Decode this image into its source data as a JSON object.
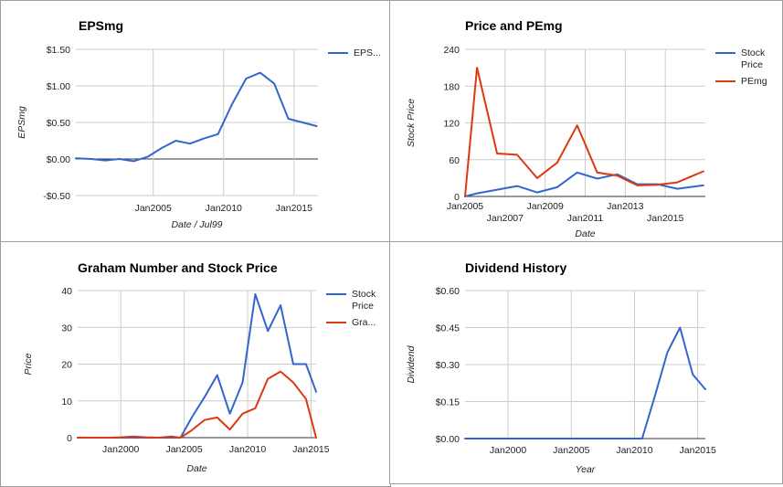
{
  "chart_data": [
    {
      "id": "eps",
      "type": "line",
      "title": "EPSmg",
      "xlabel": "Date / Jul99",
      "ylabel": "EPSmg",
      "xlim": [
        1999.5,
        2016.7
      ],
      "ylim": [
        -0.5,
        1.5
      ],
      "y_ticks": [
        -0.5,
        0,
        0.5,
        1.0,
        1.5
      ],
      "y_tick_labels": [
        "-$0.50",
        "$0.00",
        "$0.50",
        "$1.00",
        "$1.50"
      ],
      "x_ticks": [
        2005,
        2010,
        2015
      ],
      "x_tick_labels": [
        "Jan2005",
        "Jan2010",
        "Jan2015"
      ],
      "x_gridlines": [
        2005,
        2010,
        2015
      ],
      "zero_line": true,
      "legend": "right",
      "series": [
        {
          "name": "EPS...",
          "color": "#3366cc",
          "x": [
            1999.5,
            2000.6,
            2001.6,
            2002.6,
            2003.6,
            2004.6,
            2005.6,
            2006.6,
            2007.6,
            2008.6,
            2009.6,
            2010.6,
            2011.6,
            2012.6,
            2013.6,
            2014.6,
            2015.6,
            2016.6
          ],
          "y": [
            0.01,
            0.0,
            -0.02,
            0.0,
            -0.03,
            0.03,
            0.15,
            0.25,
            0.21,
            0.28,
            0.34,
            0.75,
            1.1,
            1.18,
            1.03,
            0.55,
            0.5,
            0.45
          ]
        }
      ]
    },
    {
      "id": "price_pe",
      "type": "line",
      "title": "Price and PEmg",
      "xlabel": "Date",
      "ylabel": "Stock Price",
      "xlim": [
        2005,
        2017
      ],
      "ylim": [
        0,
        240
      ],
      "y_ticks": [
        0,
        60,
        120,
        180,
        240
      ],
      "y_tick_labels": [
        "0",
        "60",
        "120",
        "180",
        "240"
      ],
      "x_ticks": [
        2005,
        2007,
        2009,
        2011,
        2013,
        2015
      ],
      "x_tick_labels": [
        "Jan2005",
        "Jan2007",
        "Jan2009",
        "Jan2011",
        "Jan2013",
        "Jan2015"
      ],
      "x_gridlines": [
        2007,
        2009,
        2011,
        2013,
        2015
      ],
      "legend": "right",
      "series": [
        {
          "name": "Stock Price",
          "color": "#3366cc",
          "x": [
            2005,
            2005.6,
            2006.6,
            2007.6,
            2008.6,
            2009.6,
            2010.6,
            2011.6,
            2012.6,
            2013.6,
            2014.6,
            2015.6,
            2016.9
          ],
          "y": [
            0,
            5,
            11,
            17,
            6.5,
            15,
            39,
            29,
            36,
            20,
            20,
            12.5,
            18
          ]
        },
        {
          "name": "PEmg",
          "color": "#dc3912",
          "x": [
            2005,
            2005.6,
            2006.6,
            2007.6,
            2008.6,
            2009.6,
            2010.6,
            2011.6,
            2012.6,
            2013.6,
            2014.6,
            2015.6,
            2016.9
          ],
          "y": [
            0,
            210,
            70,
            68,
            30,
            55,
            116,
            39,
            34,
            18,
            19,
            23,
            41
          ]
        }
      ]
    },
    {
      "id": "graham",
      "type": "line",
      "title": "Graham Number and Stock Price",
      "xlabel": "Date",
      "ylabel": "Price",
      "xlim": [
        1996.6,
        2015.4
      ],
      "ylim": [
        0,
        40
      ],
      "y_ticks": [
        0,
        10,
        20,
        30,
        40
      ],
      "y_tick_labels": [
        "0",
        "10",
        "20",
        "30",
        "40"
      ],
      "x_ticks": [
        2000,
        2005,
        2010,
        2015
      ],
      "x_tick_labels": [
        "Jan2000",
        "Jan2005",
        "Jan2010",
        "Jan2015"
      ],
      "x_gridlines": [
        2000,
        2005,
        2010,
        2015
      ],
      "legend": "right",
      "series": [
        {
          "name": "Stock Price",
          "color": "#3366cc",
          "x": [
            1996.6,
            1998,
            1999,
            2000,
            2001,
            2002,
            2003,
            2004,
            2004.7,
            2005.6,
            2006.6,
            2007.6,
            2008.6,
            2009.6,
            2010.6,
            2011.6,
            2012.6,
            2013.6,
            2014.6,
            2015.4
          ],
          "y": [
            0,
            0,
            0,
            0,
            0,
            0,
            0,
            0,
            0,
            5.5,
            11,
            17,
            6.5,
            15,
            39,
            29,
            36,
            20,
            20,
            12.5
          ]
        },
        {
          "name": "Gra...",
          "color": "#dc3912",
          "x": [
            1996.6,
            1998,
            1999,
            2000,
            2001,
            2002,
            2003,
            2004,
            2004.7,
            2005.6,
            2006.6,
            2007.6,
            2008.6,
            2009.6,
            2010.6,
            2011.6,
            2012.6,
            2013.6,
            2014.6,
            2015.4
          ],
          "y": [
            0,
            0,
            0,
            0.1,
            0.3,
            0.1,
            0,
            0.3,
            0,
            2,
            4.8,
            5.5,
            2.2,
            6.5,
            8,
            16,
            18,
            15,
            10.5,
            0
          ]
        }
      ]
    },
    {
      "id": "dividend",
      "type": "line",
      "title": "Dividend History",
      "xlabel": "Year",
      "ylabel": "Dividend",
      "xlim": [
        1996.6,
        2015.6
      ],
      "ylim": [
        0,
        0.6
      ],
      "y_ticks": [
        0,
        0.15,
        0.3,
        0.45,
        0.6
      ],
      "y_tick_labels": [
        "$0.00",
        "$0.15",
        "$0.30",
        "$0.45",
        "$0.60"
      ],
      "x_ticks": [
        2000,
        2005,
        2010,
        2015
      ],
      "x_tick_labels": [
        "Jan2000",
        "Jan2005",
        "Jan2010",
        "Jan2015"
      ],
      "x_gridlines": [
        2000,
        2005,
        2010,
        2015
      ],
      "legend": "none",
      "series": [
        {
          "name": "Dividend",
          "color": "#3366cc",
          "x": [
            1996.6,
            2000,
            2005,
            2010,
            2010.6,
            2011.6,
            2012.6,
            2013.6,
            2014.6,
            2015.6
          ],
          "y": [
            0,
            0,
            0,
            0,
            0,
            0.17,
            0.35,
            0.45,
            0.26,
            0.2
          ]
        }
      ]
    }
  ]
}
